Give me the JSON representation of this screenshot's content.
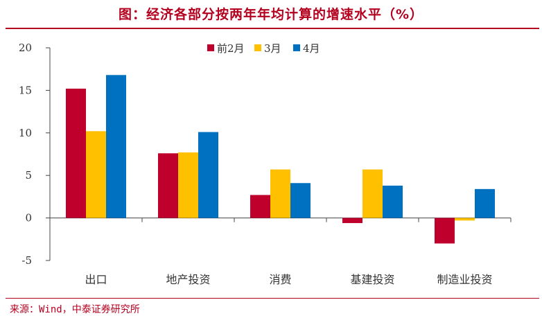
{
  "header": {
    "title": "图：经济各部分按两年年均计算的增速水平（%）"
  },
  "footer": {
    "source": "来源：Wind，中泰证券研究所"
  },
  "colors": {
    "accent": "#b4001f",
    "axis": "#444444"
  },
  "chart_data": {
    "type": "bar",
    "categories": [
      "出口",
      "地产投资",
      "消费",
      "基建投资",
      "制造业投资"
    ],
    "series": [
      {
        "name": "前2月",
        "color": "#c0002c",
        "values": [
          15.2,
          7.6,
          2.7,
          -0.6,
          -3.0
        ]
      },
      {
        "name": "3月",
        "color": "#ffc000",
        "values": [
          10.2,
          7.7,
          5.7,
          5.7,
          -0.3
        ]
      },
      {
        "name": "4月",
        "color": "#0070c0",
        "values": [
          16.8,
          10.1,
          4.1,
          3.8,
          3.4
        ]
      }
    ],
    "yticks": [
      -5,
      0,
      5,
      10,
      15,
      20
    ],
    "ytick_labels": [
      "-5",
      "0",
      "5",
      "10",
      "15",
      "20"
    ],
    "ylim": [
      -5,
      20
    ],
    "legend_position": "top",
    "grid": false
  }
}
